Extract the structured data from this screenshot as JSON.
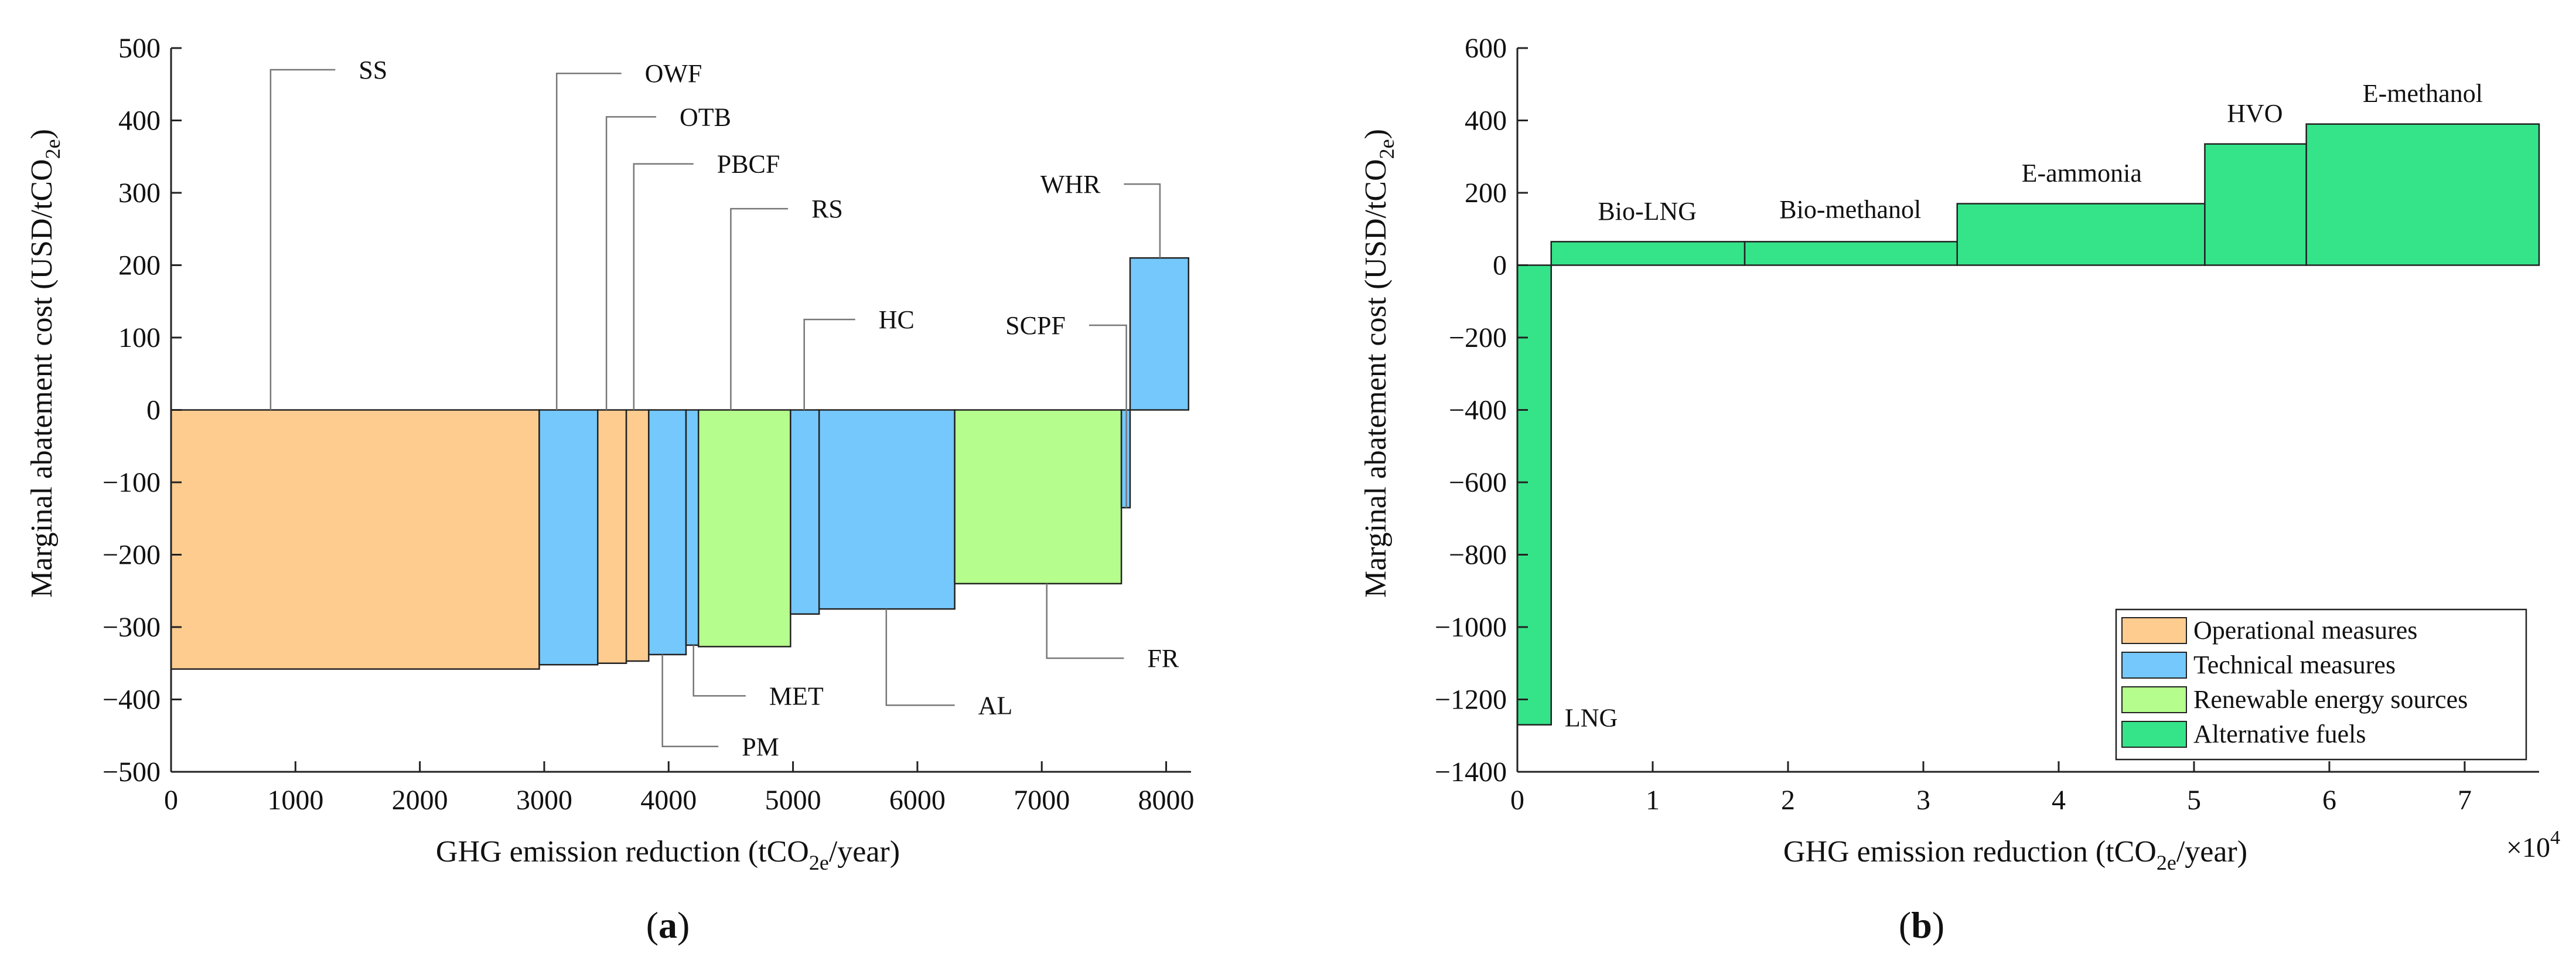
{
  "colors": {
    "operational": "#ffcc8f",
    "technical": "#75c8fb",
    "renewable": "#b5fd8c",
    "alternative": "#35e489"
  },
  "panel_labels": {
    "a": "a",
    "b": "b"
  },
  "chart_data": [
    {
      "type": "bar",
      "panel": "a",
      "xlabel": {
        "pre": "GHG emission reduction (tCO",
        "sub": "2e",
        "post": "/year)"
      },
      "ylabel": {
        "pre": "Marginal abatement cost (USD/tCO",
        "sub": "2e",
        "post": ")"
      },
      "xlim": [
        0,
        8200
      ],
      "ylim": [
        -500,
        500
      ],
      "xticks": [
        0,
        1000,
        2000,
        3000,
        4000,
        5000,
        6000,
        7000,
        8000
      ],
      "yticks": [
        500,
        400,
        300,
        200,
        100,
        0,
        -100,
        -200,
        -300,
        -400,
        -500
      ],
      "ytick_labels": [
        "500",
        "400",
        "300",
        "200",
        "100",
        "0",
        "−100",
        "−200",
        "−300",
        "−400",
        "−500"
      ],
      "bars": [
        {
          "name": "SS",
          "x0": 0,
          "x1": 2960,
          "value": -358,
          "category": "operational"
        },
        {
          "name": "OWF",
          "x0": 2960,
          "x1": 3430,
          "value": -352,
          "category": "technical"
        },
        {
          "name": "OTB",
          "x0": 3430,
          "x1": 3660,
          "value": -350,
          "category": "operational"
        },
        {
          "name": "PBCF",
          "x0": 3660,
          "x1": 3840,
          "value": -347,
          "category": "operational"
        },
        {
          "name": "PM",
          "x0": 3840,
          "x1": 4140,
          "value": -338,
          "category": "technical"
        },
        {
          "name": "MET",
          "x0": 4140,
          "x1": 4240,
          "value": -325,
          "category": "technical"
        },
        {
          "name": "RS",
          "x0": 4240,
          "x1": 4980,
          "value": -327,
          "category": "renewable"
        },
        {
          "name": "HC",
          "x0": 4980,
          "x1": 5210,
          "value": -282,
          "category": "technical"
        },
        {
          "name": "AL",
          "x0": 5210,
          "x1": 6300,
          "value": -275,
          "category": "technical"
        },
        {
          "name": "FR",
          "x0": 6300,
          "x1": 7640,
          "value": -240,
          "category": "renewable"
        },
        {
          "name": "SCPF",
          "x0": 7640,
          "x1": 7710,
          "value": -135,
          "category": "technical"
        },
        {
          "name": "WHR",
          "x0": 7710,
          "x1": 8180,
          "value": 210,
          "category": "technical"
        }
      ],
      "callouts": [
        {
          "name": "SS",
          "anchor": [
            800,
            0
          ],
          "elbow": [
            800,
            470
          ],
          "end": [
            1320,
            470
          ]
        },
        {
          "name": "OWF",
          "anchor": [
            3100,
            0
          ],
          "elbow": [
            3100,
            465
          ],
          "end": [
            3620,
            465
          ]
        },
        {
          "name": "OTB",
          "anchor": [
            3500,
            0
          ],
          "elbow": [
            3500,
            405
          ],
          "end": [
            3900,
            405
          ]
        },
        {
          "name": "PBCF",
          "anchor": [
            3720,
            0
          ],
          "elbow": [
            3720,
            340
          ],
          "end": [
            4200,
            340
          ]
        },
        {
          "name": "RS",
          "anchor": [
            4500,
            0
          ],
          "elbow": [
            4500,
            278
          ],
          "end": [
            4960,
            278
          ]
        },
        {
          "name": "HC",
          "anchor": [
            5090,
            0
          ],
          "elbow": [
            5090,
            125
          ],
          "end": [
            5500,
            125
          ]
        },
        {
          "name": "SCPF",
          "anchor": [
            7680,
            -135
          ],
          "elbow": [
            7680,
            117
          ],
          "end": [
            7380,
            117
          ]
        },
        {
          "name": "WHR",
          "anchor": [
            7950,
            210
          ],
          "elbow": [
            7950,
            312
          ],
          "end": [
            7660,
            312
          ]
        },
        {
          "name": "PM",
          "anchor": [
            3950,
            -338
          ],
          "elbow": [
            3950,
            -465
          ],
          "end": [
            4400,
            -465
          ]
        },
        {
          "name": "MET",
          "anchor": [
            4200,
            -325
          ],
          "elbow": [
            4200,
            -395
          ],
          "end": [
            4620,
            -395
          ]
        },
        {
          "name": "AL",
          "anchor": [
            5750,
            -275
          ],
          "elbow": [
            5750,
            -408
          ],
          "end": [
            6300,
            -408
          ]
        },
        {
          "name": "FR",
          "anchor": [
            7040,
            -240
          ],
          "elbow": [
            7040,
            -343
          ],
          "end": [
            7660,
            -343
          ]
        }
      ]
    },
    {
      "type": "bar",
      "panel": "b",
      "xlabel": {
        "pre": "GHG emission reduction (tCO",
        "sub": "2e",
        "post": "/year)"
      },
      "ylabel": {
        "pre": "Marginal abatement cost (USD/tCO",
        "sub": "2e",
        "post": ")"
      },
      "x_multiplier": "×10",
      "x_multiplier_exp": "4",
      "xlim": [
        0,
        7.55
      ],
      "ylim": [
        -1400,
        600
      ],
      "xticks": [
        0,
        1,
        2,
        3,
        4,
        5,
        6,
        7
      ],
      "yticks": [
        600,
        400,
        200,
        0,
        -200,
        -400,
        -600,
        -800,
        -1000,
        -1200,
        -1400
      ],
      "ytick_labels": [
        "600",
        "400",
        "200",
        "0",
        "−200",
        "−400",
        "−600",
        "−800",
        "−1000",
        "−1200",
        "−1400"
      ],
      "bars": [
        {
          "name": "LNG",
          "x0": 0,
          "x1": 0.25,
          "value": -1270,
          "category": "alternative",
          "label_at": [
            0.35,
            -1250
          ]
        },
        {
          "name": "Bio-LNG",
          "x0": 0.25,
          "x1": 1.68,
          "value": 65,
          "category": "alternative",
          "label_at": [
            0.96,
            150
          ]
        },
        {
          "name": "Bio-methanol",
          "x0": 1.68,
          "x1": 3.25,
          "value": 65,
          "category": "alternative",
          "label_at": [
            2.46,
            155
          ]
        },
        {
          "name": "E-ammonia",
          "x0": 3.25,
          "x1": 5.08,
          "value": 170,
          "category": "alternative",
          "label_at": [
            4.17,
            255
          ]
        },
        {
          "name": "HVO",
          "x0": 5.08,
          "x1": 5.83,
          "value": 335,
          "category": "alternative",
          "label_at": [
            5.45,
            420
          ]
        },
        {
          "name": "E-methanol",
          "x0": 5.83,
          "x1": 7.55,
          "value": 390,
          "category": "alternative",
          "label_at": [
            6.69,
            475
          ]
        }
      ],
      "legend": {
        "position": "bottom-right",
        "entries": [
          {
            "label": "Operational measures",
            "category": "operational"
          },
          {
            "label": "Technical measures",
            "category": "technical"
          },
          {
            "label": "Renewable energy sources",
            "category": "renewable"
          },
          {
            "label": "Alternative fuels",
            "category": "alternative"
          }
        ]
      }
    }
  ]
}
